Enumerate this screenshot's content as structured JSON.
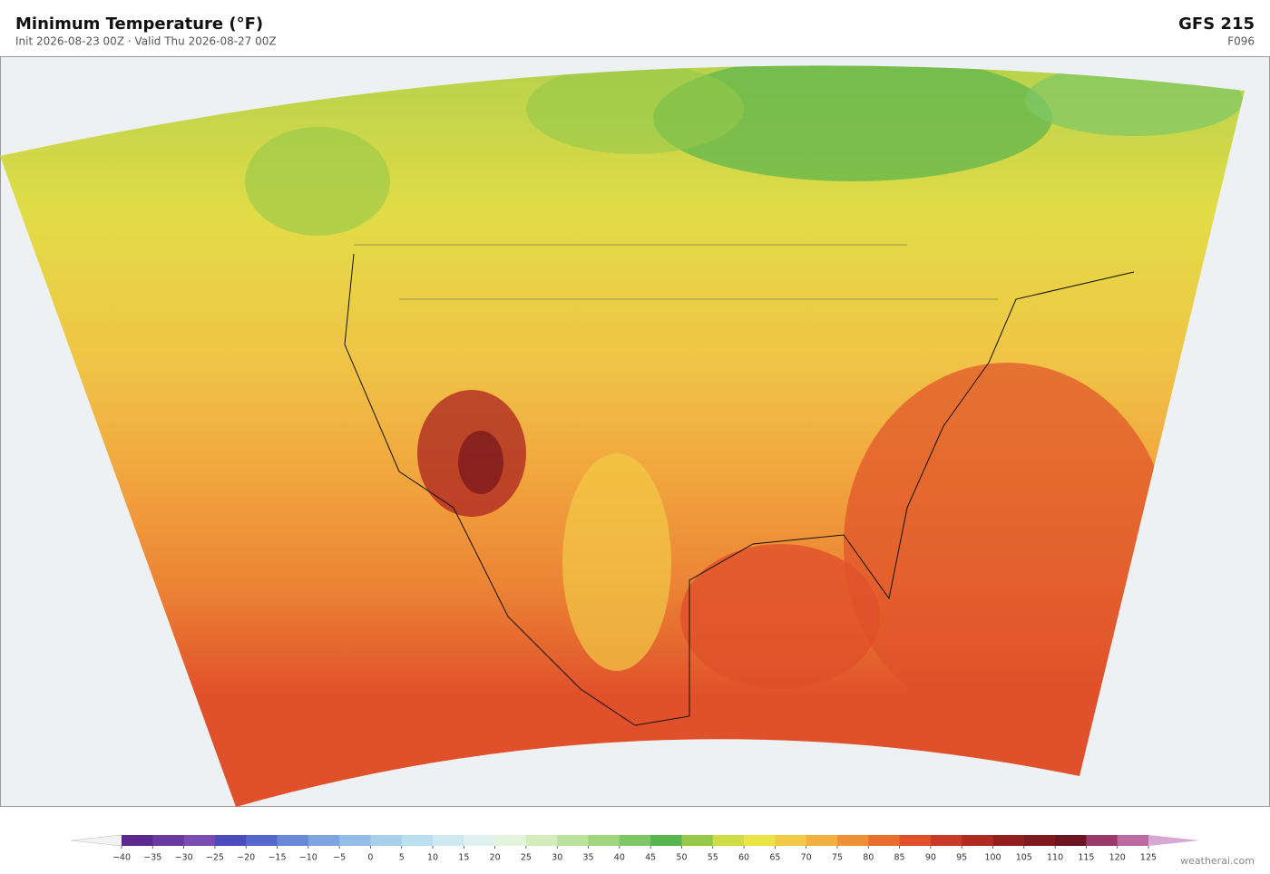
{
  "header": {
    "title": "Minimum Temperature  (°F)",
    "subtitle": "Init 2026-08-23 00Z  ·  Valid Thu 2026-08-27 00Z",
    "model": "GFS  215",
    "forecast_hour": "F096"
  },
  "colorbar": {
    "ticks": [
      {
        "value": -40,
        "label": "−40"
      },
      {
        "value": -35,
        "label": "−35"
      },
      {
        "value": -30,
        "label": "−30"
      },
      {
        "value": -25,
        "label": "−25"
      },
      {
        "value": -20,
        "label": "−20"
      },
      {
        "value": -15,
        "label": "−15"
      },
      {
        "value": -10,
        "label": "−10"
      },
      {
        "value": -5,
        "label": "−5"
      },
      0,
      5,
      10,
      15,
      20,
      25,
      30,
      35,
      40,
      45,
      50,
      55,
      60,
      65,
      70,
      75,
      80,
      85,
      90,
      95,
      100,
      105,
      110,
      115,
      120,
      125
    ],
    "colors": [
      "#5b2a8c",
      "#6b3a9e",
      "#7a4db0",
      "#4b4bbb",
      "#5566cc",
      "#6a88d8",
      "#7fa5e0",
      "#93bde6",
      "#a8d0ec",
      "#bcdff0",
      "#cfe9f2",
      "#e0f2f0",
      "#e4f4dc",
      "#d3ecbc",
      "#b9e29a",
      "#9fd67e",
      "#7ec766",
      "#58b44e",
      "#95c84a",
      "#cfdc45",
      "#ebe445",
      "#f2ca46",
      "#f1b040",
      "#ee9038",
      "#e86e32",
      "#e0502a",
      "#c93a26",
      "#b02a22",
      "#931e1e",
      "#7c1a1e",
      "#6a1620",
      "#9a3a6a",
      "#bb6aa2"
    ],
    "under_color": "#f3f3f3",
    "over_color": "#d8a8d4"
  },
  "credit": "weatherai.com"
}
